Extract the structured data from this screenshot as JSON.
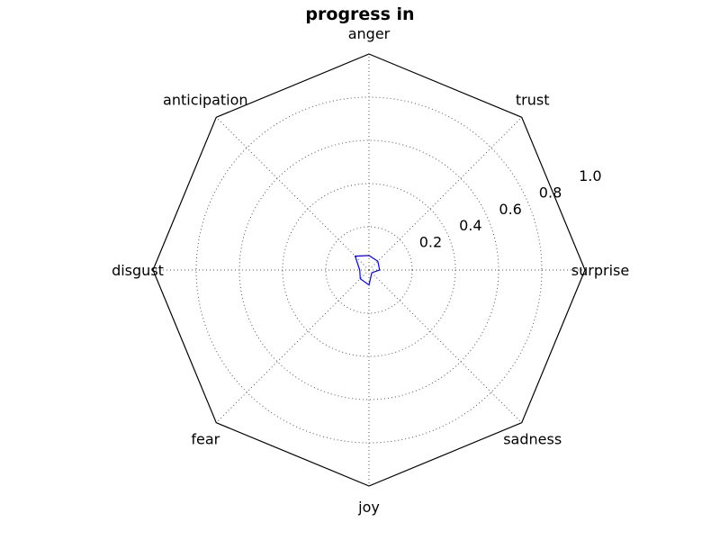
{
  "chart_data": {
    "type": "radar",
    "title": "progress in",
    "categories": [
      "anger",
      "trust",
      "surprise",
      "sadness",
      "joy",
      "fear",
      "disgust",
      "anticipation"
    ],
    "series": [
      {
        "values": [
          0.067,
          0.058,
          0.049,
          0.018,
          0.069,
          0.057,
          0.043,
          0.091
        ]
      }
    ],
    "rlim": [
      0,
      1.0
    ],
    "r_ticks": [
      0.2,
      0.4,
      0.6,
      0.8,
      1.0
    ],
    "r_tick_labels": [
      "0.2",
      "0.4",
      "0.6",
      "0.8",
      "1.0"
    ],
    "grid": true,
    "colors": {
      "series": "#0000ff",
      "frame": "#000000",
      "grid": "#555555"
    }
  }
}
